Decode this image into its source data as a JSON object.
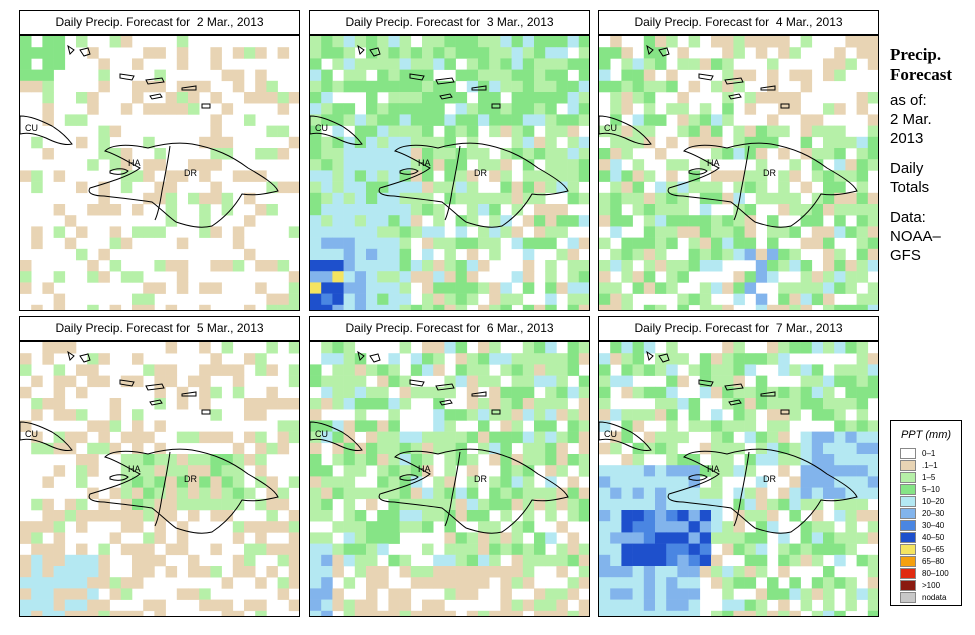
{
  "panels": [
    {
      "title": "Daily Precip. Forecast for  2 Mar., 2013",
      "date": "2 Mar."
    },
    {
      "title": "Daily Precip. Forecast for  3 Mar., 2013",
      "date": "3 Mar."
    },
    {
      "title": "Daily Precip. Forecast for  4 Mar., 2013",
      "date": "4 Mar."
    },
    {
      "title": "Daily Precip. Forecast for  5 Mar., 2013",
      "date": "5 Mar."
    },
    {
      "title": "Daily Precip. Forecast for  6 Mar., 2013",
      "date": "6 Mar."
    },
    {
      "title": "Daily Precip. Forecast for  7 Mar., 2013",
      "date": "7 Mar."
    }
  ],
  "map_labels": {
    "cuba": "CU",
    "haiti": "HA",
    "dominican_republic": "DR"
  },
  "sidebar": {
    "title_line1": "Precip.",
    "title_line2": "Forecast",
    "asof_label": "as of:",
    "asof_date_line1": "2 Mar.",
    "asof_date_line2": "2013",
    "totals_line1": "Daily",
    "totals_line2": "Totals",
    "source_line1": "Data:",
    "source_line2": "NOAA–",
    "source_line3": "GFS"
  },
  "legend": {
    "title": "PPT (mm)",
    "items": [
      {
        "label": "0–1",
        "color": "#ffffff"
      },
      {
        "label": ".1–1",
        "color": "#e8d4b4"
      },
      {
        "label": "1–5",
        "color": "#b6f0a8"
      },
      {
        "label": "5–10",
        "color": "#86e486"
      },
      {
        "label": "10–20",
        "color": "#b4e8f2"
      },
      {
        "label": "20–30",
        "color": "#82b4ec"
      },
      {
        "label": "30–40",
        "color": "#4a86e2"
      },
      {
        "label": "40–50",
        "color": "#1e50cc"
      },
      {
        "label": "50–65",
        "color": "#f4e460"
      },
      {
        "label": "65–80",
        "color": "#f4a010"
      },
      {
        "label": "80–100",
        "color": "#e02a10"
      },
      {
        "label": ">100",
        "color": "#8a1a10"
      },
      {
        "label": "nodata",
        "color": "#c8c8c8"
      }
    ]
  }
}
